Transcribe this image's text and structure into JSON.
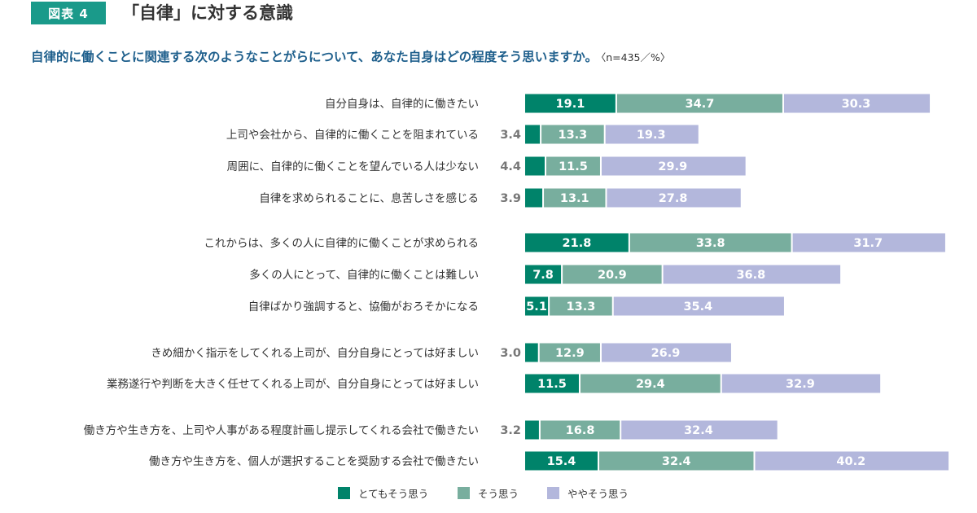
{
  "header": {
    "figure_badge": "図表 4",
    "title": "「自律」に対する意識",
    "question": "自律的に働くことに関連する次のようなことがらについて、あなた自身はどの程度そう思いますか。",
    "note": "〈n=435／%〉"
  },
  "colors": {
    "strongly_agree": "#00836a",
    "agree": "#78ae9e",
    "somewhat_agree": "#b3b7dc",
    "small_value_text": "#777777"
  },
  "chart_data": {
    "type": "bar",
    "orientation": "horizontal",
    "stacked": true,
    "title": "「自律」に対する意識",
    "subtitle": "自律的に働くことに関連する次のようなことがらについて、あなた自身はどの程度そう思いますか。〈n=435／%〉",
    "unit": "%",
    "n": 435,
    "xlim": [
      0,
      100
    ],
    "grid": false,
    "legend_position": "bottom",
    "categories": [
      "自分自身は、自律的に働きたい",
      "上司や会社から、自律的に働くことを阻まれている",
      "周囲に、自律的に働くことを望んでいる人は少ない",
      "自律を求められることに、息苦しさを感じる",
      "これからは、多くの人に自律的に働くことが求められる",
      "多くの人にとって、自律的に働くことは難しい",
      "自律ばかり強調すると、協働がおろそかになる",
      "きめ細かく指示をしてくれる上司が、自分自身にとっては好ましい",
      "業務遂行や判断を大きく任せてくれる上司が、自分自身にとっては好ましい",
      "働き方や生き方を、上司や人事がある程度計画し提示してくれる会社で働きたい",
      "働き方や生き方を、個人が選択することを奨励する会社で働きたい"
    ],
    "groups": [
      [
        0,
        1,
        2,
        3
      ],
      [
        4,
        5,
        6
      ],
      [
        7,
        8
      ],
      [
        9,
        10
      ]
    ],
    "series": [
      {
        "name": "とてもそう思う",
        "values": [
          19.1,
          3.4,
          4.4,
          3.9,
          21.8,
          7.8,
          5.1,
          3.0,
          11.5,
          3.2,
          15.4
        ]
      },
      {
        "name": "そう思う",
        "values": [
          34.7,
          13.3,
          11.5,
          13.1,
          33.8,
          20.9,
          13.3,
          12.9,
          29.4,
          16.8,
          32.4
        ]
      },
      {
        "name": "ややそう思う",
        "values": [
          30.3,
          19.3,
          29.9,
          27.8,
          31.7,
          36.8,
          35.4,
          26.9,
          32.9,
          32.4,
          40.2
        ]
      }
    ]
  },
  "legend": {
    "items": [
      {
        "label": "とてもそう思う"
      },
      {
        "label": "そう思う"
      },
      {
        "label": "ややそう思う"
      }
    ]
  }
}
